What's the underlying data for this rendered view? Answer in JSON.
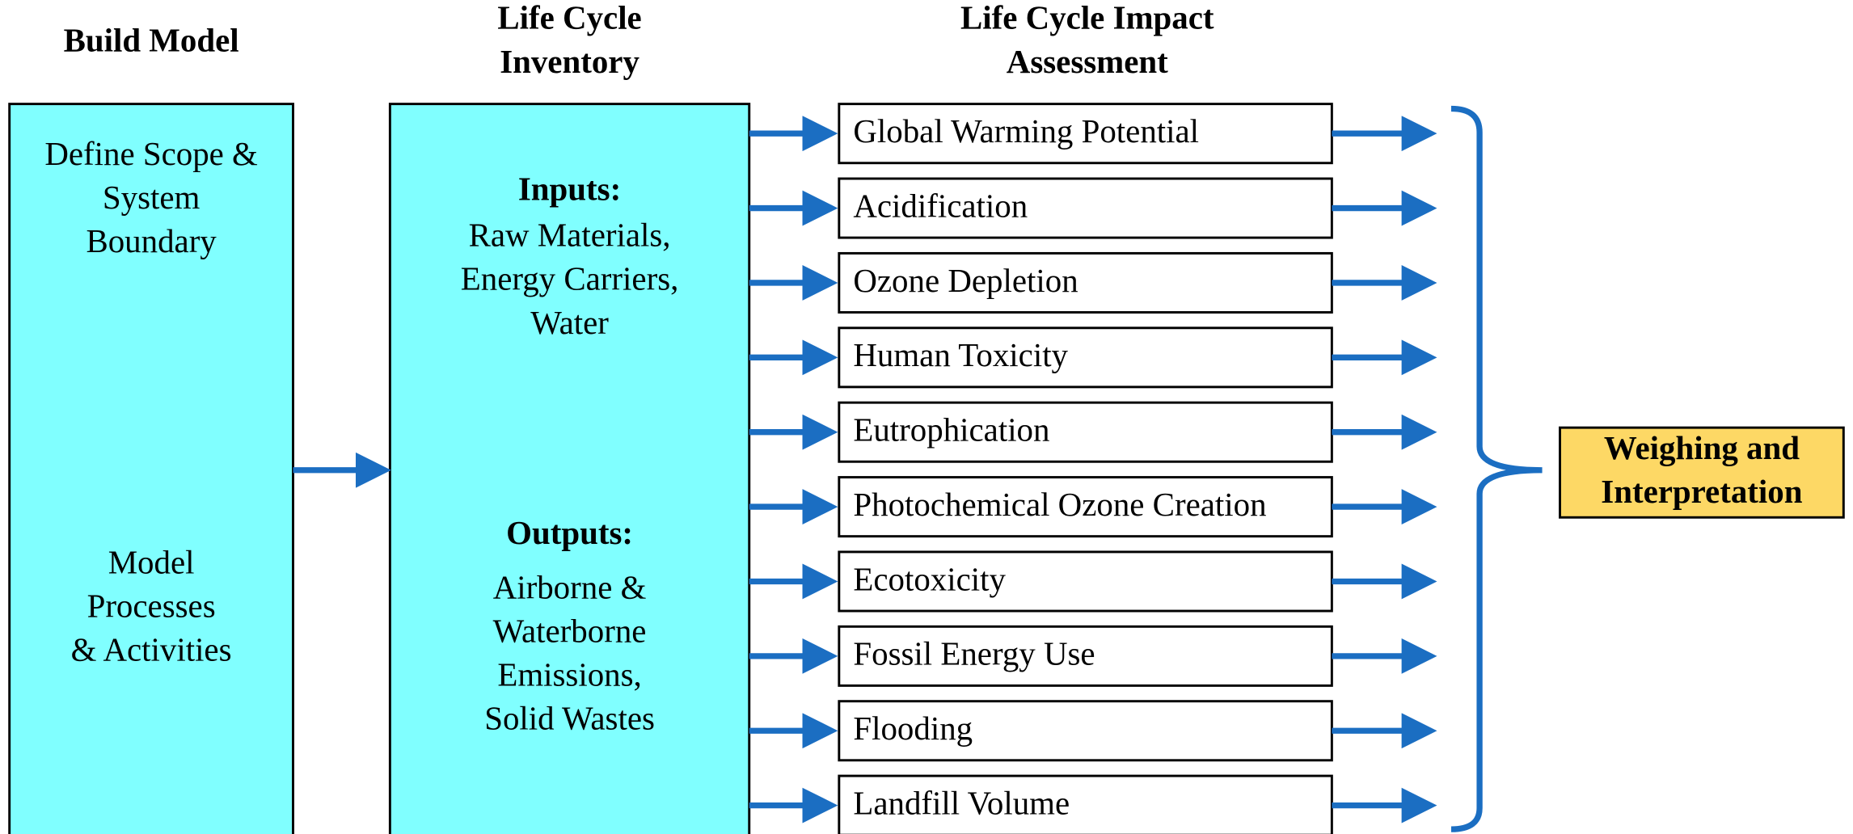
{
  "build_model": {
    "header": "Build Model",
    "scope": [
      "Define Scope &",
      "System",
      "Boundary"
    ],
    "processes": [
      "Model",
      "Processes",
      "& Activities"
    ]
  },
  "inventory": {
    "header": [
      "Life Cycle",
      "Inventory"
    ],
    "inputs": {
      "title": "Inputs:",
      "lines": [
        "Raw Materials,",
        "Energy Carriers,",
        "Water"
      ]
    },
    "outputs": {
      "title": "Outputs:",
      "lines": [
        "Airborne &",
        "Waterborne",
        "Emissions,",
        "Solid Wastes"
      ]
    }
  },
  "impact_assessment": {
    "header": [
      "Life Cycle Impact",
      "Assessment"
    ],
    "categories": [
      "Global Warming Potential",
      "Acidification",
      "Ozone Depletion",
      "Human Toxicity",
      "Eutrophication",
      "Photochemical Ozone Creation",
      "Ecotoxicity",
      "Fossil Energy Use",
      "Flooding",
      "Landfill Volume"
    ]
  },
  "interpretation": [
    "Weighing and",
    "Interpretation"
  ]
}
